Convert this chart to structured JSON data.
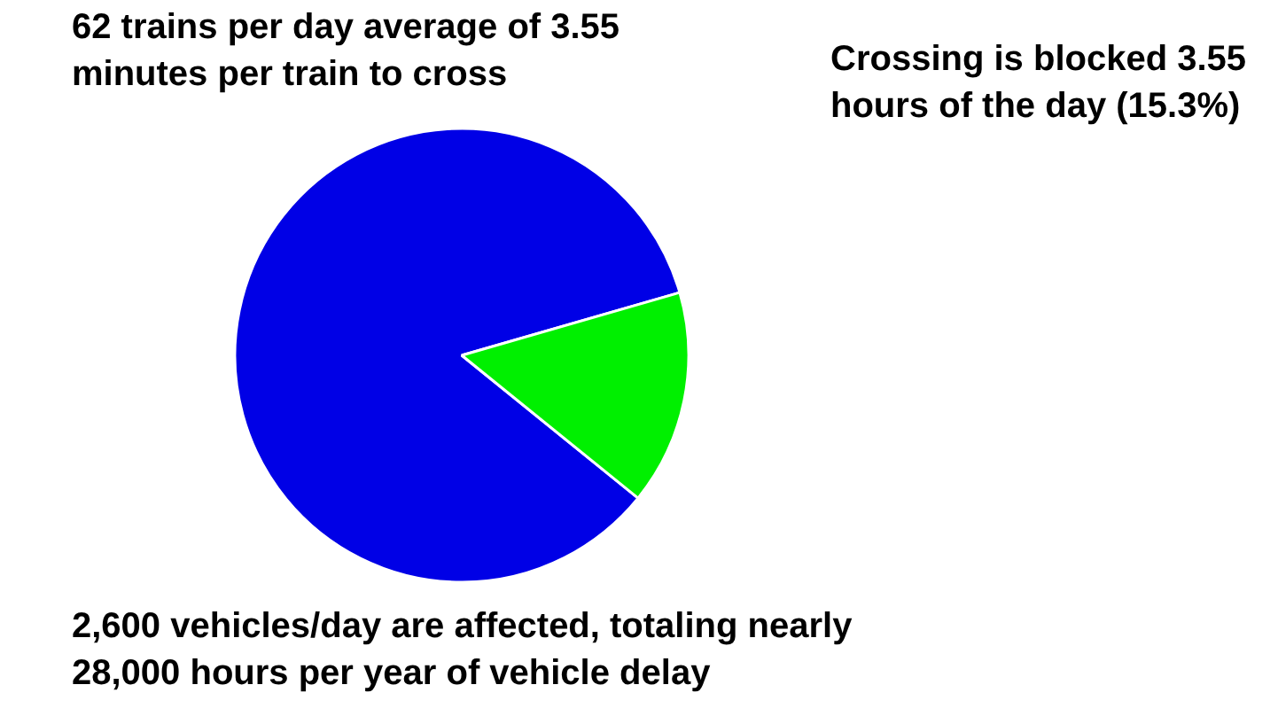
{
  "chart_data": {
    "type": "pie",
    "categories": [
      null,
      null
    ],
    "values": [
      84.7,
      15.3
    ],
    "colors": [
      "#0000e6",
      "#00f000"
    ],
    "annotations": [
      "62 trains per day average of 3.55 minutes per train to cross",
      "Crossing is blocked 3.55 hours of the day (15.3%)",
      "2,600 vehicles/day are affected, totaling nearly 28,000 hours per year of vehicle delay"
    ]
  }
}
